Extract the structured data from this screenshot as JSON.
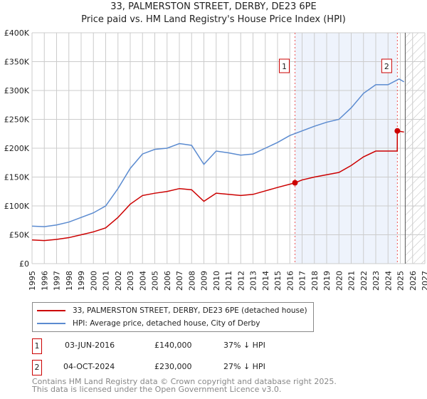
{
  "chart_data": {
    "type": "line",
    "title": "33, PALMERSTON STREET, DERBY, DE23 6PE",
    "subtitle": "Price paid vs. HM Land Registry's House Price Index (HPI)",
    "xlim": [
      1995,
      2027
    ],
    "ylim": [
      0,
      400000
    ],
    "x_ticks": [
      "1995",
      "1996",
      "1997",
      "1998",
      "1999",
      "2000",
      "2001",
      "2002",
      "2003",
      "2004",
      "2005",
      "2006",
      "2007",
      "2008",
      "2009",
      "2010",
      "2011",
      "2012",
      "2013",
      "2014",
      "2015",
      "2016",
      "2017",
      "2018",
      "2019",
      "2020",
      "2021",
      "2022",
      "2023",
      "2024",
      "2025",
      "2026",
      "2027"
    ],
    "y_ticks": [
      {
        "v": 0,
        "label": "£0"
      },
      {
        "v": 50000,
        "label": "£50K"
      },
      {
        "v": 100000,
        "label": "£100K"
      },
      {
        "v": 150000,
        "label": "£150K"
      },
      {
        "v": 200000,
        "label": "£200K"
      },
      {
        "v": 250000,
        "label": "£250K"
      },
      {
        "v": 300000,
        "label": "£300K"
      },
      {
        "v": 350000,
        "label": "£350K"
      },
      {
        "v": 400000,
        "label": "£400K"
      }
    ],
    "series": [
      {
        "name": "33, PALMERSTON STREET, DERBY, DE23 6PE (detached house)",
        "color": "#cc0000",
        "x": [
          1995,
          1996,
          1997,
          1998,
          1999,
          2000,
          2001,
          2002,
          2003,
          2004,
          2005,
          2006,
          2007,
          2008,
          2009,
          2010,
          2011,
          2012,
          2013,
          2014,
          2015,
          2016.42,
          2017,
          2018,
          2019,
          2020,
          2021,
          2022,
          2023,
          2024,
          2024.75,
          2024.76,
          2025.3
        ],
        "y": [
          41000,
          40000,
          42000,
          45000,
          50000,
          55000,
          62000,
          80000,
          103000,
          118000,
          122000,
          125000,
          130000,
          128000,
          108000,
          122000,
          120000,
          118000,
          120000,
          126000,
          132000,
          140000,
          145000,
          150000,
          154000,
          158000,
          170000,
          185000,
          195000,
          195000,
          195000,
          230000,
          228000
        ]
      },
      {
        "name": "HPI: Average price, detached house, City of Derby",
        "color": "#5b8bd0",
        "x": [
          1995,
          1996,
          1997,
          1998,
          1999,
          2000,
          2001,
          2002,
          2003,
          2004,
          2005,
          2006,
          2007,
          2008,
          2009,
          2010,
          2011,
          2012,
          2013,
          2014,
          2015,
          2016,
          2017,
          2018,
          2019,
          2020,
          2021,
          2022,
          2023,
          2024,
          2024.9,
          2025.3
        ],
        "y": [
          65000,
          64000,
          67000,
          72000,
          80000,
          88000,
          100000,
          130000,
          165000,
          190000,
          198000,
          200000,
          208000,
          205000,
          172000,
          195000,
          192000,
          188000,
          190000,
          200000,
          210000,
          222000,
          230000,
          238000,
          245000,
          250000,
          270000,
          295000,
          310000,
          310000,
          320000,
          315000
        ]
      }
    ],
    "sales": [
      {
        "label": "1",
        "x": 2016.42,
        "y": 140000
      },
      {
        "label": "2",
        "x": 2024.76,
        "y": 230000
      }
    ],
    "hatch_from": 2025.4
  },
  "legend": {
    "price": "33, PALMERSTON STREET, DERBY, DE23 6PE (detached house)",
    "hpi": "HPI: Average price, detached house, City of Derby"
  },
  "table": [
    {
      "n": "1",
      "date": "03-JUN-2016",
      "price": "£140,000",
      "diff": "37% ↓ HPI"
    },
    {
      "n": "2",
      "date": "04-OCT-2024",
      "price": "£230,000",
      "diff": "27% ↓ HPI"
    }
  ],
  "footer": [
    "Contains HM Land Registry data © Crown copyright and database right 2025.",
    "This data is licensed under the Open Government Licence v3.0."
  ]
}
